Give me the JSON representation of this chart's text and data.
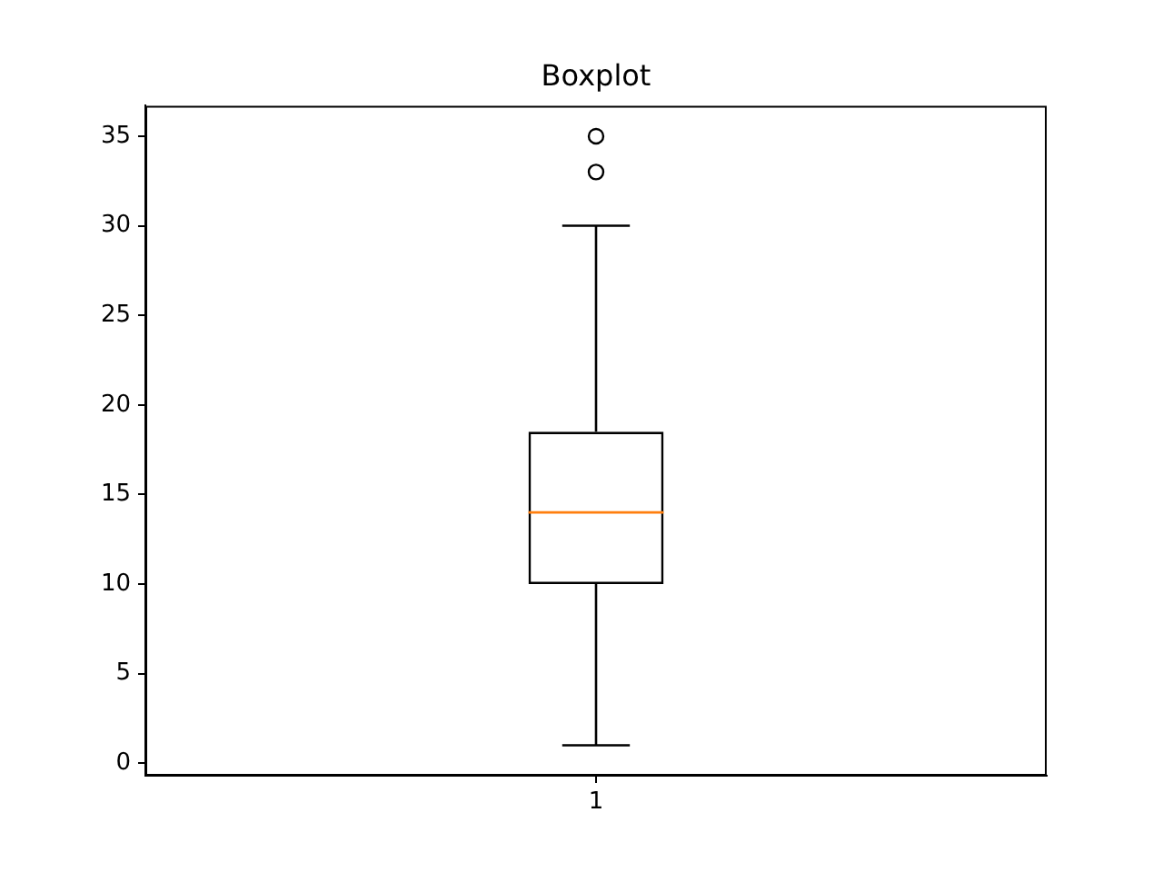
{
  "chart_data": {
    "type": "box",
    "title": "Boxplot",
    "categories": [
      "1"
    ],
    "boxes": [
      {
        "low": 1,
        "q1": 10,
        "median": 14,
        "q3": 18.5,
        "high": 30,
        "outliers": [
          33,
          35
        ]
      }
    ],
    "color": "#000000",
    "ylim": [
      -0.7,
      36.7
    ],
    "yticks": [
      0,
      5,
      10,
      15,
      20,
      25,
      30,
      35
    ],
    "grid": false,
    "legend": false,
    "marker": "circle"
  }
}
